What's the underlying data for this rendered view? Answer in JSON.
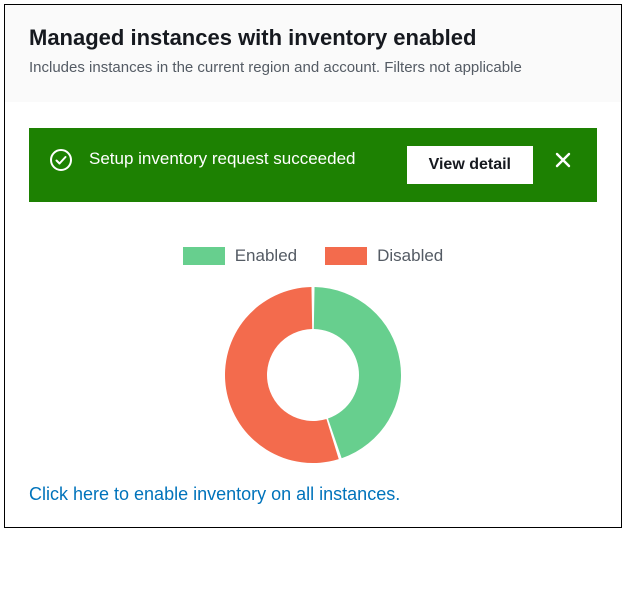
{
  "header": {
    "title": "Managed instances with inventory enabled",
    "subtitle": "Includes instances in the current region and account. Filters not applicable"
  },
  "banner": {
    "message": "Setup inventory request succeeded",
    "button_label": "View detail",
    "background_color": "#1d8102",
    "text_color": "#ffffff"
  },
  "chart": {
    "type": "donut",
    "legend": [
      {
        "label": "Enabled",
        "color": "#67cf8e"
      },
      {
        "label": "Disabled",
        "color": "#f36b4d"
      }
    ],
    "slices": [
      {
        "name": "Enabled",
        "fraction": 0.45,
        "color": "#67cf8e"
      },
      {
        "name": "Disabled",
        "fraction": 0.55,
        "color": "#f36b4d"
      }
    ],
    "outer_radius": 88,
    "inner_radius": 46,
    "gap_deg": 2,
    "background_color": "#ffffff"
  },
  "link": {
    "text": "Click here to enable inventory on all instances.",
    "color": "#0073bb"
  }
}
